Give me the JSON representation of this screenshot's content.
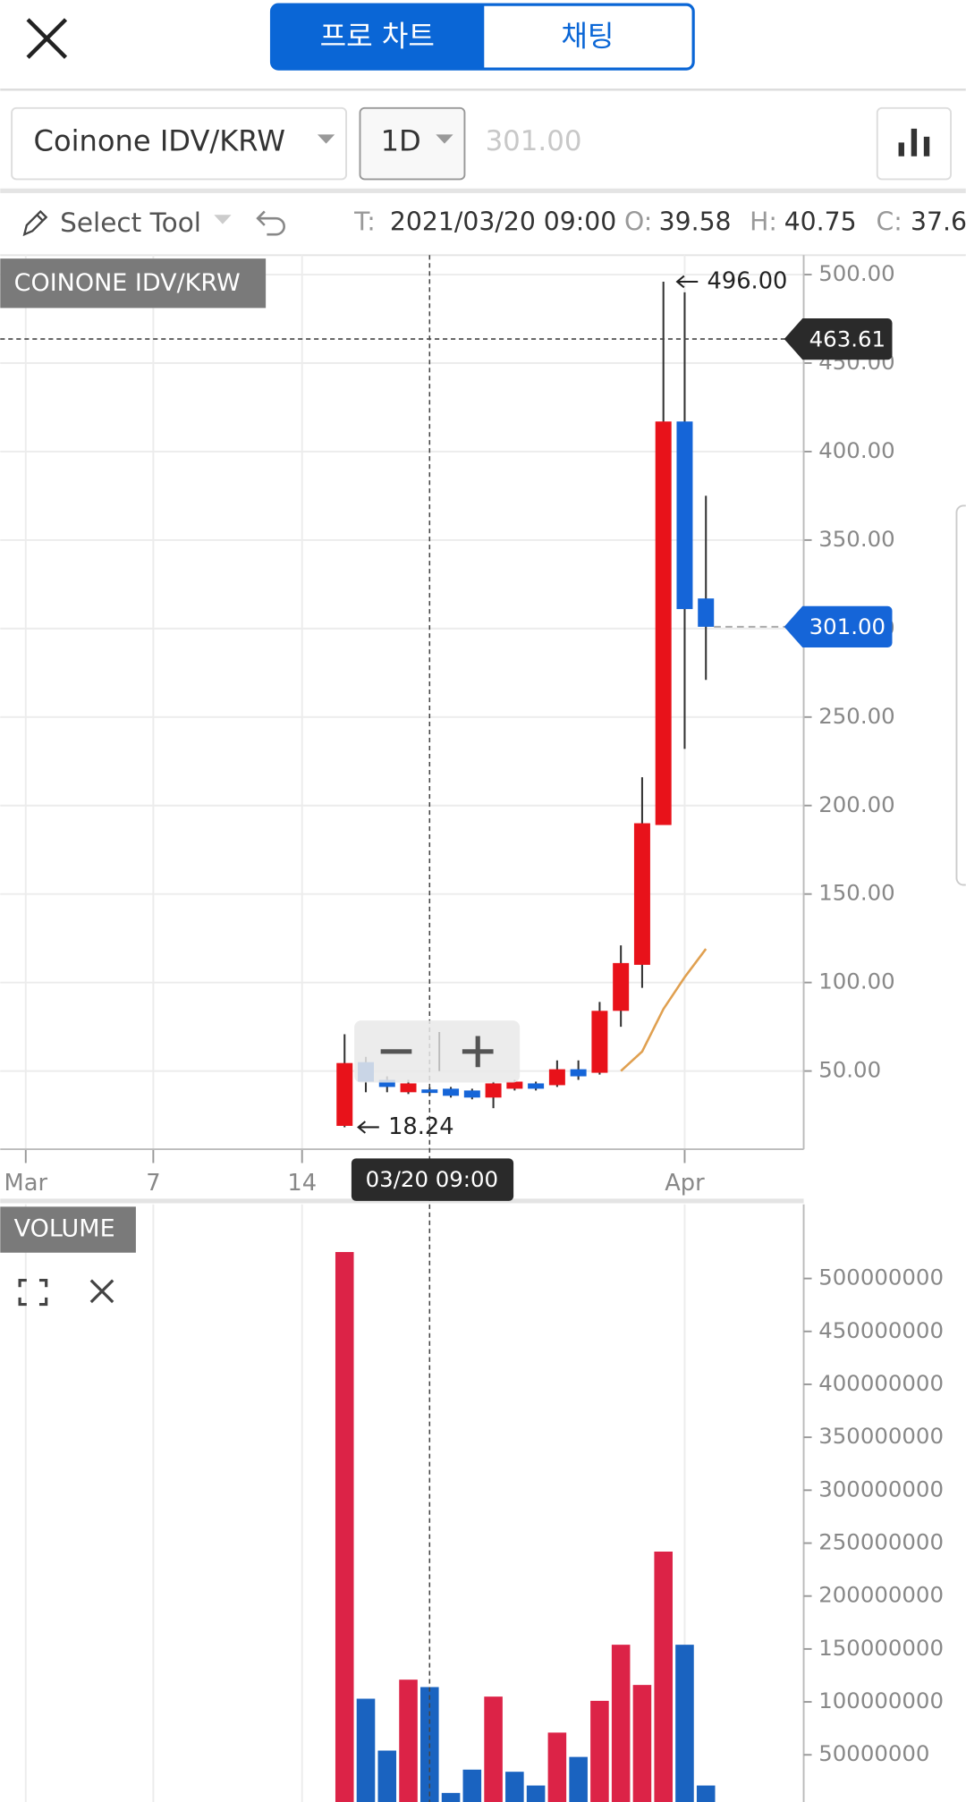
{
  "header": {
    "tabs": [
      "프로 차트",
      "채팅"
    ]
  },
  "toolbar": {
    "symbol": "Coinone IDV/KRW",
    "interval": "1D",
    "price_input": "301.00",
    "tool": "Select Tool",
    "ohlc": [
      {
        "key": "T:",
        "value": "2021/03/20 09:00"
      },
      {
        "key": "O:",
        "value": "39.58"
      },
      {
        "key": "H:",
        "value": "40.75"
      },
      {
        "key": "C:",
        "value": "37.6"
      }
    ]
  },
  "chart_data": [
    {
      "type": "candlestick",
      "title": "COINONE IDV/KRW",
      "x": [
        16,
        17,
        18,
        19,
        20,
        21,
        22,
        23,
        24,
        25,
        26,
        27,
        28,
        29,
        30,
        31,
        32,
        33
      ],
      "open": [
        19,
        55,
        45,
        38,
        39.58,
        40,
        39,
        35,
        40,
        43,
        42,
        51,
        49,
        84,
        110,
        189,
        417,
        317
      ],
      "high": [
        70.8,
        58,
        47,
        45,
        40.75,
        41,
        40,
        44,
        45,
        44,
        56,
        56,
        89,
        121,
        216,
        496,
        490,
        375
      ],
      "low": [
        18.24,
        38,
        38,
        37,
        36,
        35,
        34,
        29,
        39,
        39,
        41,
        45,
        48,
        75,
        97,
        189,
        232,
        271
      ],
      "close": [
        54.5,
        44,
        41,
        43,
        37.6,
        36,
        35,
        43,
        44,
        40,
        51,
        47,
        84,
        111,
        190,
        417,
        311,
        301
      ],
      "up_color": "#e8121a",
      "down_color": "#1565d8",
      "xlim": [
        -0.2,
        37.6
      ],
      "xticks": [
        {
          "value": 1,
          "label": "Mar"
        },
        7,
        14,
        {
          "value": 32,
          "label": "Apr"
        }
      ],
      "ylim": [
        5.8,
        511
      ],
      "yticks": [
        {
          "value": 50,
          "label": "50.00"
        },
        {
          "value": 100,
          "label": "100.00"
        },
        {
          "value": 150,
          "label": "150.00"
        },
        {
          "value": 200,
          "label": "200.00"
        },
        {
          "value": 250,
          "label": "250.00"
        },
        {
          "value": 300,
          "label": "300.00"
        },
        {
          "value": 350,
          "label": "350.00"
        },
        {
          "value": 400,
          "label": "400.00"
        },
        {
          "value": 450,
          "label": "450.00"
        },
        {
          "value": 500,
          "label": "500.00"
        }
      ],
      "grid": true,
      "moving_average": {
        "color": "#e0a050",
        "x": [
          29,
          30,
          31,
          32,
          33
        ],
        "values": [
          50,
          61,
          85,
          103,
          119
        ]
      },
      "crosshair": {
        "x": 20,
        "x_label": "03/20 09:00",
        "y": 463.61,
        "y_label": "463.61"
      },
      "last_price": {
        "value": 301,
        "label": "301.00",
        "color": "#1565d8"
      },
      "annotations": [
        {
          "x": 31,
          "value": 496,
          "label": "496.00"
        },
        {
          "x": 16,
          "value": 18.24,
          "label": "18.24"
        }
      ]
    },
    {
      "type": "bar",
      "title": "VOLUME",
      "x": [
        16,
        17,
        18,
        19,
        20,
        21,
        22,
        23,
        24,
        25,
        26,
        27,
        28,
        29,
        30,
        31,
        32,
        33
      ],
      "values": [
        525000000,
        103000000,
        54000000,
        121000000,
        114000000,
        14000000,
        36000000,
        105000000,
        34000000,
        21000000,
        71000000,
        48000000,
        101000000,
        154000000,
        116000000,
        242000000,
        154000000,
        21000000
      ],
      "colors": [
        "#dc2347",
        "#1a63c0",
        "#1a63c0",
        "#dc2347",
        "#1a63c0",
        "#1a63c0",
        "#1a63c0",
        "#dc2347",
        "#1a63c0",
        "#1a63c0",
        "#dc2347",
        "#1a63c0",
        "#dc2347",
        "#dc2347",
        "#dc2347",
        "#dc2347",
        "#1a63c0",
        "#1a63c0"
      ],
      "xlim": [
        -0.2,
        37.6
      ],
      "ylim": [
        0,
        570000000
      ],
      "yticks": [
        50000000,
        100000000,
        150000000,
        200000000,
        250000000,
        300000000,
        350000000,
        400000000,
        450000000,
        500000000
      ],
      "grid": false
    }
  ]
}
